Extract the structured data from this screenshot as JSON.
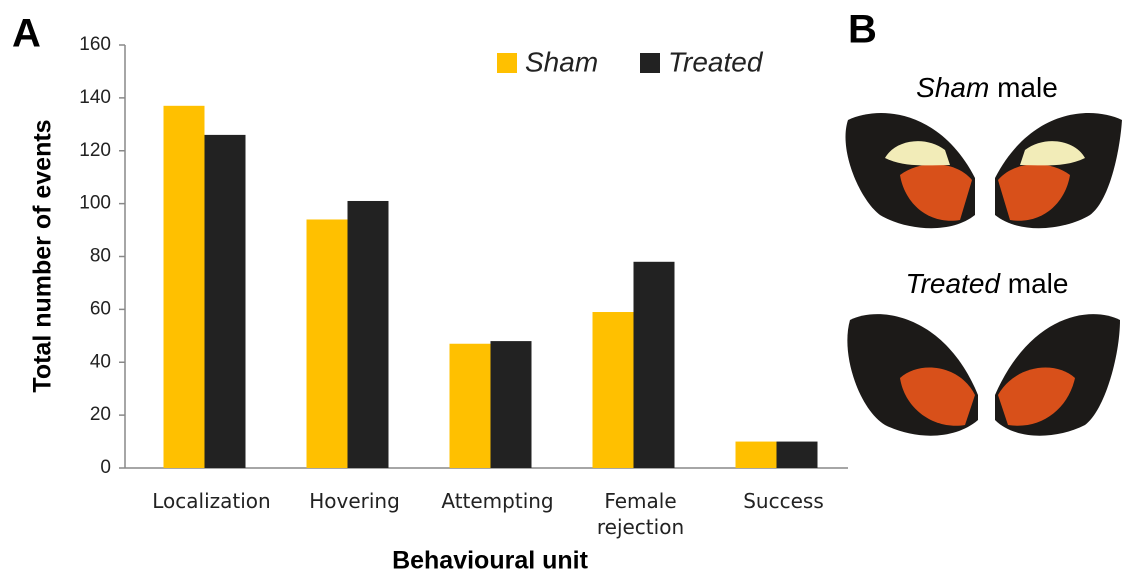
{
  "chart_data": {
    "type": "bar",
    "panel_label": "A",
    "x_label": "Behavioural unit",
    "y_label": "Total number of events",
    "categories": [
      "Localization",
      "Hovering",
      "Attempting",
      "Female rejection",
      "Success"
    ],
    "series": [
      {
        "name": "Sham",
        "color": "#ffc000",
        "values": [
          137,
          94,
          47,
          59,
          10
        ]
      },
      {
        "name": "Treated",
        "color": "#222222",
        "values": [
          126,
          101,
          48,
          78,
          10
        ]
      }
    ],
    "ylim": [
      0,
      160
    ],
    "yticks": [
      0,
      20,
      40,
      60,
      80,
      100,
      120,
      140,
      160
    ],
    "grid": false,
    "legend": "top-right"
  },
  "panel_b": {
    "label": "B",
    "captions": [
      {
        "italic": "Sham",
        "rest": "male"
      },
      {
        "italic": "Treated",
        "rest": "male"
      }
    ]
  }
}
